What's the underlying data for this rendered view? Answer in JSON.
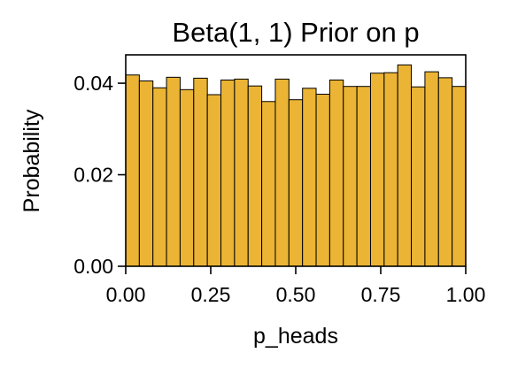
{
  "chart_data": {
    "type": "bar",
    "title": "Beta(1, 1) Prior on p",
    "xlabel": "p_heads",
    "ylabel": "Probability",
    "xlim": [
      0,
      1
    ],
    "ylim": [
      0,
      0.0462
    ],
    "x_ticks": [
      {
        "value": 0.0,
        "label": "0.00"
      },
      {
        "value": 0.25,
        "label": "0.25"
      },
      {
        "value": 0.5,
        "label": "0.50"
      },
      {
        "value": 0.75,
        "label": "0.75"
      },
      {
        "value": 1.0,
        "label": "1.00"
      }
    ],
    "y_ticks": [
      {
        "value": 0.0,
        "label": "0.00"
      },
      {
        "value": 0.02,
        "label": "0.02"
      },
      {
        "value": 0.04,
        "label": "0.04"
      }
    ],
    "bin_edges": [
      0.0,
      0.04,
      0.08,
      0.12,
      0.16,
      0.2,
      0.24,
      0.28,
      0.32,
      0.36,
      0.4,
      0.44,
      0.48,
      0.52,
      0.56,
      0.6,
      0.64,
      0.68,
      0.72,
      0.76,
      0.8,
      0.84,
      0.88,
      0.92,
      0.96,
      1.0
    ],
    "values": [
      0.0418,
      0.0405,
      0.039,
      0.0413,
      0.0386,
      0.0411,
      0.0375,
      0.0407,
      0.0409,
      0.0394,
      0.036,
      0.0409,
      0.0364,
      0.0389,
      0.0376,
      0.0407,
      0.0393,
      0.0393,
      0.0422,
      0.0423,
      0.044,
      0.0392,
      0.0425,
      0.0412,
      0.0393
    ],
    "bar_color": "#EBB434",
    "edge_color": "#000000",
    "grid": false,
    "legend": null
  }
}
